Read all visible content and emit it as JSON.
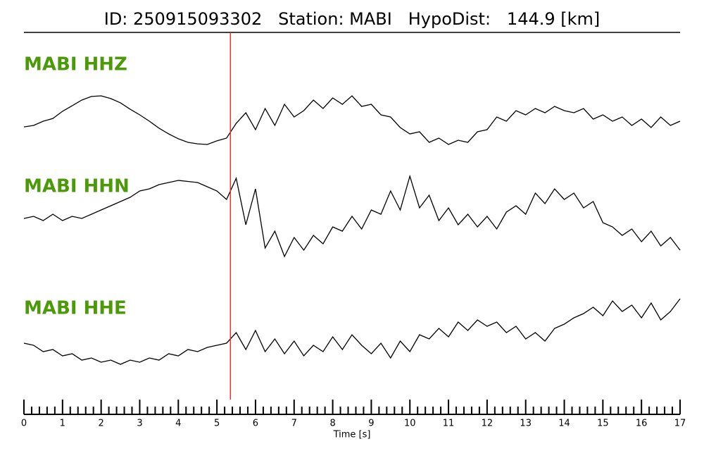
{
  "chart_data": {
    "type": "line",
    "title": "ID: 250915093302   Station: MABI   HypoDist:   144.9 [km]",
    "xlabel": "Time [s]",
    "xlim": [
      0,
      17
    ],
    "xticks": [
      0,
      1,
      2,
      3,
      4,
      5,
      6,
      7,
      8,
      9,
      10,
      11,
      12,
      13,
      14,
      15,
      16,
      17
    ],
    "minor_divisions": 5,
    "pick_time": 5.35,
    "pick_color": "#e8322d",
    "label_color": "#4c9a0a",
    "x": [
      0,
      0.25,
      0.5,
      0.75,
      1,
      1.25,
      1.5,
      1.75,
      2,
      2.25,
      2.5,
      2.75,
      3,
      3.25,
      3.5,
      3.75,
      4,
      4.25,
      4.5,
      4.75,
      5,
      5.25,
      5.5,
      5.75,
      6,
      6.25,
      6.5,
      6.75,
      7,
      7.25,
      7.5,
      7.75,
      8,
      8.25,
      8.5,
      8.75,
      9,
      9.25,
      9.5,
      9.75,
      10,
      10.25,
      10.5,
      10.75,
      11,
      11.25,
      11.5,
      11.75,
      12,
      12.25,
      12.5,
      12.75,
      13,
      13.25,
      13.5,
      13.75,
      14,
      14.25,
      14.5,
      14.75,
      15,
      15.25,
      15.5,
      15.75,
      16,
      16.25,
      16.5,
      16.75,
      17
    ],
    "series": [
      {
        "name": "MABI HHZ",
        "color": "#000000",
        "ylim": [
          -2,
          2
        ],
        "values": [
          -0.17,
          -0.1,
          0.1,
          0.23,
          0.57,
          0.83,
          1.1,
          1.27,
          1.3,
          1.17,
          0.97,
          0.67,
          0.4,
          0.1,
          -0.23,
          -0.5,
          -0.73,
          -0.9,
          -0.97,
          -1,
          -0.83,
          -0.7,
          0,
          0.5,
          -0.3,
          0.7,
          -0.1,
          0.9,
          0.3,
          0.6,
          1.1,
          0.7,
          1.2,
          0.9,
          1.3,
          0.8,
          0.9,
          0.4,
          0.3,
          -0.2,
          -0.5,
          -0.4,
          -0.9,
          -0.7,
          -1.0,
          -0.8,
          -0.9,
          -0.4,
          -0.3,
          0.3,
          0.1,
          0.6,
          0.4,
          0.7,
          0.5,
          0.8,
          0.6,
          0.5,
          0.7,
          0.2,
          0.4,
          0.1,
          0.3,
          -0.1,
          0.2,
          -0.2,
          0.3,
          -0.1,
          0.1
        ]
      },
      {
        "name": "MABI HHN",
        "color": "#000000",
        "ylim": [
          -2,
          2
        ],
        "values": [
          0,
          0.1,
          -0.1,
          0.2,
          -0.1,
          0.1,
          0,
          0.2,
          0.4,
          0.6,
          0.8,
          1.0,
          1.3,
          1.4,
          1.6,
          1.7,
          1.8,
          1.75,
          1.7,
          1.5,
          1.3,
          0.9,
          1.9,
          -0.3,
          1.4,
          -1.4,
          -0.6,
          -1.8,
          -0.9,
          -1.5,
          -0.8,
          -1.2,
          -0.4,
          -0.6,
          0.1,
          -0.5,
          0.4,
          0.2,
          1.3,
          0.4,
          2.0,
          0.5,
          1.1,
          -0.1,
          0.5,
          -0.3,
          0.2,
          -0.4,
          0.1,
          -0.5,
          0.3,
          0.6,
          0.2,
          1.2,
          0.7,
          1.4,
          0.9,
          1.2,
          0.5,
          0.8,
          -0.2,
          -0.4,
          -0.8,
          -0.5,
          -1.1,
          -0.6,
          -1.3,
          -0.9,
          -1.5
        ]
      },
      {
        "name": "MABI HHE",
        "color": "#000000",
        "ylim": [
          -2,
          2
        ],
        "values": [
          0.1,
          0,
          -0.3,
          -0.2,
          -0.5,
          -0.4,
          -0.7,
          -0.6,
          -0.8,
          -0.7,
          -0.9,
          -0.7,
          -0.8,
          -0.6,
          -0.7,
          -0.4,
          -0.5,
          -0.2,
          -0.3,
          -0.1,
          0,
          0.1,
          0.6,
          -0.2,
          0.7,
          -0.3,
          0.3,
          -0.4,
          0.2,
          -0.5,
          0,
          -0.3,
          0.4,
          -0.2,
          0.5,
          0,
          -0.4,
          0.1,
          -0.6,
          0.2,
          -0.3,
          0.5,
          0.3,
          0.8,
          0.4,
          1.1,
          0.7,
          1.2,
          0.9,
          1.1,
          0.6,
          0.9,
          0.3,
          0.6,
          0.2,
          0.8,
          1.0,
          1.3,
          1.5,
          1.8,
          1.4,
          2.1,
          1.6,
          1.9,
          1.3,
          2.0,
          1.2,
          1.6,
          2.2
        ]
      }
    ]
  }
}
